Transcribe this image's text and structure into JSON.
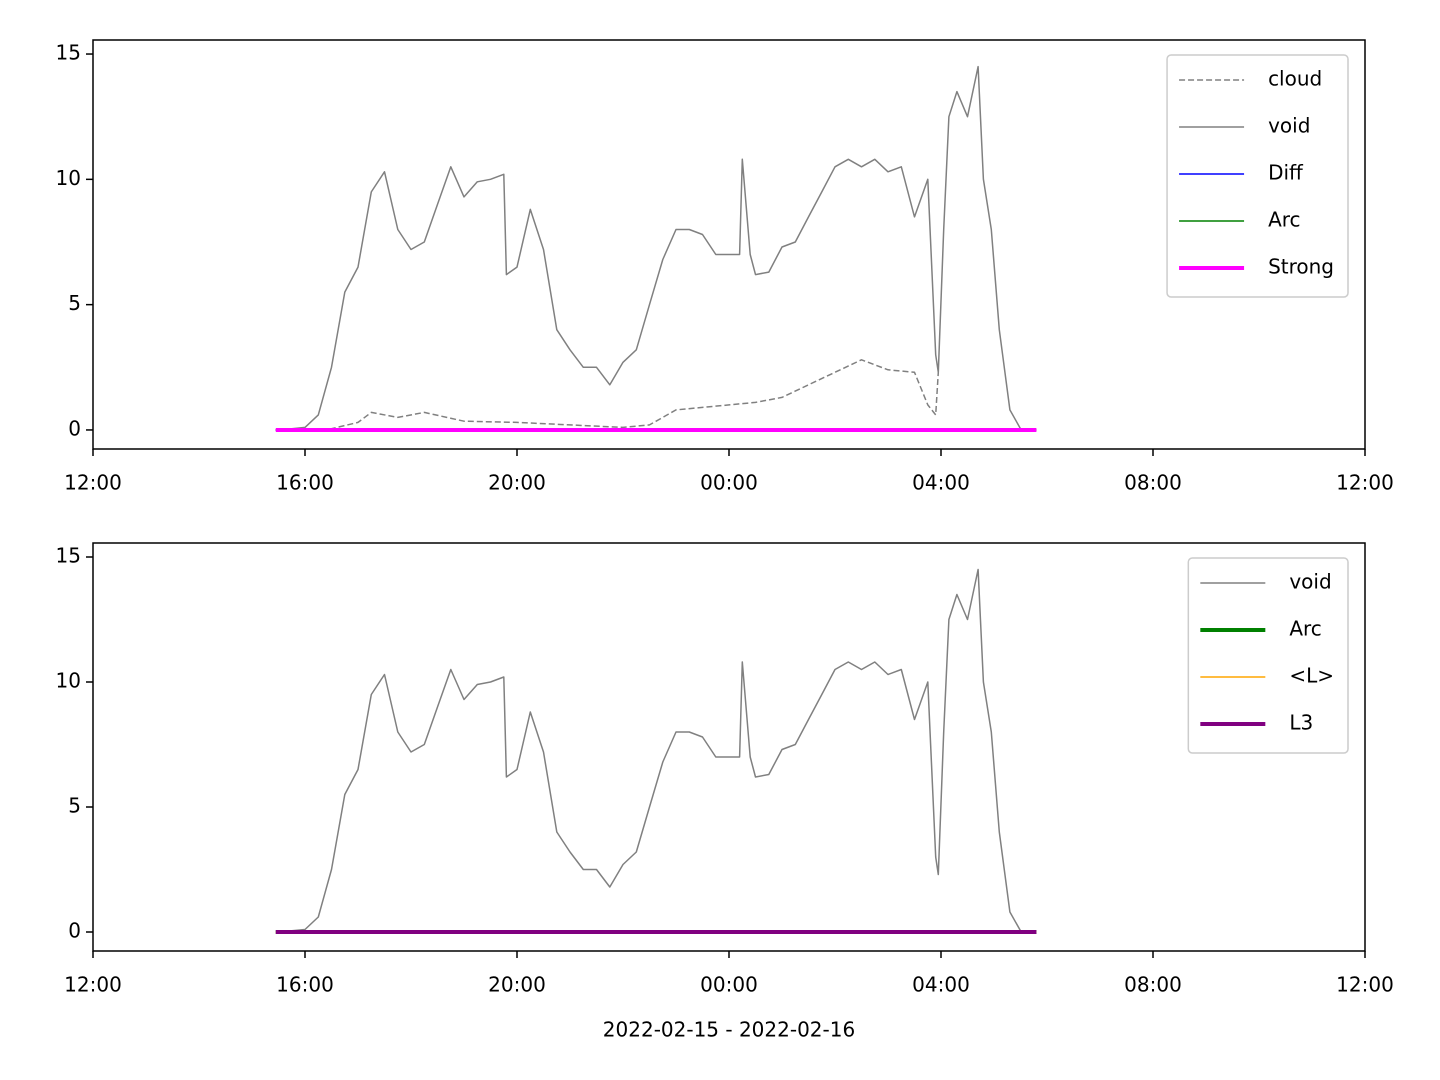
{
  "chart_data": [
    {
      "type": "line",
      "legend": "upper right",
      "xlim": [
        12,
        36
      ],
      "xticks": [
        {
          "value": 12,
          "label": "12:00"
        },
        {
          "value": 16,
          "label": "16:00"
        },
        {
          "value": 20,
          "label": "20:00"
        },
        {
          "value": 24,
          "label": "00:00"
        },
        {
          "value": 28,
          "label": "04:00"
        },
        {
          "value": 32,
          "label": "08:00"
        },
        {
          "value": 36,
          "label": "12:00"
        }
      ],
      "ylim": [
        -0.76,
        15.56
      ],
      "yticks": [
        0,
        5,
        10,
        15
      ],
      "series": [
        {
          "name": "cloud",
          "color": "#808080",
          "linewidth": 1.5,
          "dashed": true,
          "x": [
            15.45,
            16.5,
            17.0,
            17.25,
            17.75,
            18.25,
            19.0,
            20.0,
            21.0,
            22.0,
            22.5,
            23.0,
            23.5,
            24.0,
            24.5,
            25.0,
            25.5,
            26.0,
            26.5,
            27.0,
            27.5,
            27.75,
            27.9,
            27.95
          ],
          "values": [
            0,
            0.05,
            0.3,
            0.7,
            0.5,
            0.7,
            0.35,
            0.3,
            0.2,
            0.1,
            0.2,
            0.8,
            0.9,
            1.0,
            1.1,
            1.3,
            1.8,
            2.3,
            2.8,
            2.4,
            2.3,
            1.0,
            0.6,
            2.3
          ]
        },
        {
          "name": "void",
          "color": "#808080",
          "linewidth": 1.5,
          "dashed": false,
          "x": [
            15.45,
            15.75,
            16.0,
            16.25,
            16.5,
            16.75,
            17.0,
            17.25,
            17.5,
            17.75,
            18.0,
            18.25,
            18.5,
            18.75,
            19.0,
            19.25,
            19.5,
            19.75,
            19.8,
            20.0,
            20.25,
            20.5,
            20.75,
            21.0,
            21.25,
            21.5,
            21.75,
            22.0,
            22.25,
            22.5,
            22.75,
            23.0,
            23.25,
            23.5,
            23.75,
            24.0,
            24.2,
            24.25,
            24.4,
            24.5,
            24.75,
            25.0,
            25.25,
            25.5,
            25.75,
            26.0,
            26.25,
            26.5,
            26.75,
            27.0,
            27.25,
            27.5,
            27.75,
            27.9,
            27.95,
            28.05,
            28.15,
            28.3,
            28.5,
            28.7,
            28.8,
            28.95,
            29.1,
            29.3,
            29.5,
            29.8
          ],
          "values": [
            0,
            0.05,
            0.1,
            0.6,
            2.5,
            5.5,
            6.5,
            9.5,
            10.3,
            8,
            7.2,
            7.5,
            9,
            10.5,
            9.3,
            9.9,
            10,
            10.2,
            6.2,
            6.5,
            8.8,
            7.2,
            4,
            3.2,
            2.5,
            2.5,
            1.8,
            2.7,
            3.2,
            5,
            6.8,
            8,
            8,
            7.8,
            7,
            7,
            7,
            10.8,
            7,
            6.2,
            6.3,
            7.3,
            7.5,
            8.5,
            9.5,
            10.5,
            10.8,
            10.5,
            10.8,
            10.3,
            10.5,
            8.5,
            10,
            3,
            2.3,
            8,
            12.5,
            13.5,
            12.5,
            14.5,
            10,
            8,
            4,
            0.8,
            0.05,
            0
          ]
        },
        {
          "name": "Diff",
          "color": "#0000ff",
          "linewidth": 1.5,
          "dashed": false,
          "x": [
            15.45,
            29.8
          ],
          "values": [
            0,
            0
          ]
        },
        {
          "name": "Arc",
          "color": "#008000",
          "linewidth": 1.5,
          "dashed": false,
          "x": [
            15.45,
            29.8
          ],
          "values": [
            0,
            0
          ]
        },
        {
          "name": "Strong",
          "color": "#ff00ff",
          "linewidth": 4,
          "dashed": false,
          "x": [
            15.45,
            29.8
          ],
          "values": [
            0,
            0
          ]
        }
      ]
    },
    {
      "type": "line",
      "legend": "upper right",
      "xlabel": "2022-02-15 - 2022-02-16",
      "xlim": [
        12,
        36
      ],
      "xticks": [
        {
          "value": 12,
          "label": "12:00"
        },
        {
          "value": 16,
          "label": "16:00"
        },
        {
          "value": 20,
          "label": "20:00"
        },
        {
          "value": 24,
          "label": "00:00"
        },
        {
          "value": 28,
          "label": "04:00"
        },
        {
          "value": 32,
          "label": "08:00"
        },
        {
          "value": 36,
          "label": "12:00"
        }
      ],
      "ylim": [
        -0.76,
        15.56
      ],
      "yticks": [
        0,
        5,
        10,
        15
      ],
      "series": [
        {
          "name": "void",
          "color": "#808080",
          "linewidth": 1.5,
          "dashed": false,
          "x": [
            15.45,
            15.75,
            16.0,
            16.25,
            16.5,
            16.75,
            17.0,
            17.25,
            17.5,
            17.75,
            18.0,
            18.25,
            18.5,
            18.75,
            19.0,
            19.25,
            19.5,
            19.75,
            19.8,
            20.0,
            20.25,
            20.5,
            20.75,
            21.0,
            21.25,
            21.5,
            21.75,
            22.0,
            22.25,
            22.5,
            22.75,
            23.0,
            23.25,
            23.5,
            23.75,
            24.0,
            24.2,
            24.25,
            24.4,
            24.5,
            24.75,
            25.0,
            25.25,
            25.5,
            25.75,
            26.0,
            26.25,
            26.5,
            26.75,
            27.0,
            27.25,
            27.5,
            27.75,
            27.9,
            27.95,
            28.05,
            28.15,
            28.3,
            28.5,
            28.7,
            28.8,
            28.95,
            29.1,
            29.3,
            29.5,
            29.8
          ],
          "values": [
            0,
            0.05,
            0.1,
            0.6,
            2.5,
            5.5,
            6.5,
            9.5,
            10.3,
            8,
            7.2,
            7.5,
            9,
            10.5,
            9.3,
            9.9,
            10,
            10.2,
            6.2,
            6.5,
            8.8,
            7.2,
            4,
            3.2,
            2.5,
            2.5,
            1.8,
            2.7,
            3.2,
            5,
            6.8,
            8,
            8,
            7.8,
            7,
            7,
            7,
            10.8,
            7,
            6.2,
            6.3,
            7.3,
            7.5,
            8.5,
            9.5,
            10.5,
            10.8,
            10.5,
            10.8,
            10.3,
            10.5,
            8.5,
            10,
            3,
            2.3,
            8,
            12.5,
            13.5,
            12.5,
            14.5,
            10,
            8,
            4,
            0.8,
            0.05,
            0
          ]
        },
        {
          "name": "Arc",
          "color": "#008000",
          "linewidth": 4,
          "dashed": false,
          "x": [
            15.45,
            29.8
          ],
          "values": [
            0,
            0
          ]
        },
        {
          "name": "<L>",
          "color": "#ffa500",
          "linewidth": 1.5,
          "dashed": false,
          "x": [
            15.45,
            29.8
          ],
          "values": [
            0,
            0
          ]
        },
        {
          "name": "L3",
          "color": "#800080",
          "linewidth": 4,
          "dashed": false,
          "x": [
            15.45,
            29.8
          ],
          "values": [
            0,
            0
          ]
        }
      ]
    }
  ]
}
